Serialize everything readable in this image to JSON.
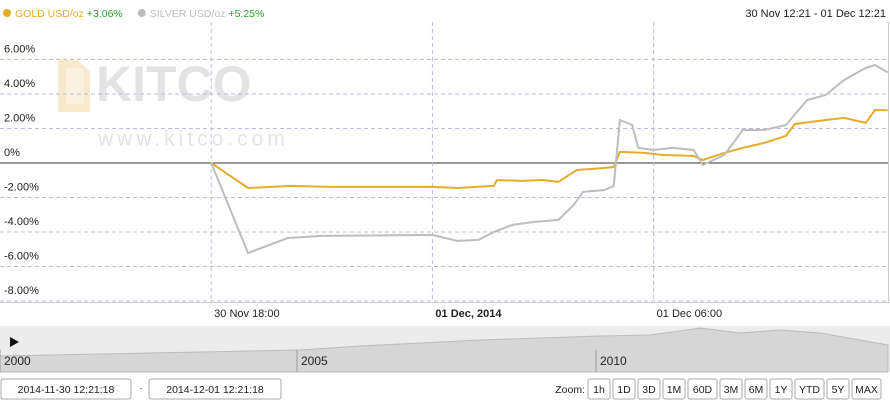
{
  "chart_data": {
    "type": "line",
    "date_range": "30 Nov 12:21 - 01 Dec 12:21",
    "watermark": {
      "brand": "KITCO",
      "url": "www.kitco.com"
    },
    "xlim": [
      "2014-11-30 12:21:18",
      "2014-12-01 12:21:18"
    ],
    "xticks": [
      {
        "value": "2014-11-30 18:00",
        "label": "30 Nov 18:00"
      },
      {
        "value": "2014-12-01 00:00",
        "label": "01 Dec, 2014"
      },
      {
        "value": "2014-12-01 06:00",
        "label": "01 Dec 06:00"
      }
    ],
    "ylim": [
      -8.06,
      8.17
    ],
    "yticks": [
      {
        "value": 6,
        "label": "6.00%"
      },
      {
        "value": 4,
        "label": "4.00%"
      },
      {
        "value": 2,
        "label": "2.00%"
      },
      {
        "value": 0,
        "label": "0%"
      },
      {
        "value": -2,
        "label": "-2.00%"
      },
      {
        "value": -4,
        "label": "-4.00%"
      },
      {
        "value": -6,
        "label": "-6.00%"
      },
      {
        "value": -8,
        "label": "-8.00%"
      }
    ],
    "grid": true,
    "series": [
      {
        "name": "GOLD USD/oz",
        "color": "#e3ad2b",
        "change": 3.06,
        "change_label": "+3.06%",
        "x": [
          "2014-11-30 18:00",
          "2014-11-30 19:00",
          "2014-11-30 20:10",
          "2014-11-30 21:15",
          "2014-12-01 00:00",
          "2014-12-01 00:40",
          "2014-12-01 01:40",
          "2014-12-01 01:45",
          "2014-12-01 02:25",
          "2014-12-01 03:00",
          "2014-12-01 03:25",
          "2014-12-01 03:55",
          "2014-12-01 04:40",
          "2014-12-01 04:55",
          "2014-12-01 05:05",
          "2014-12-01 05:45",
          "2014-12-01 06:15",
          "2014-12-01 07:05",
          "2014-12-01 07:20",
          "2014-12-01 07:55",
          "2014-12-01 08:25",
          "2014-12-01 09:00",
          "2014-12-01 09:35",
          "2014-12-01 09:50",
          "2014-12-01 10:40",
          "2014-12-01 11:10",
          "2014-12-01 11:45",
          "2014-12-01 12:00",
          "2014-12-01 12:21"
        ],
        "values": [
          0,
          -1.45,
          -1.33,
          -1.39,
          -1.39,
          -1.45,
          -1.33,
          -0.99,
          -1.04,
          -0.99,
          -1.1,
          -0.41,
          -0.29,
          -0.23,
          0.64,
          0.58,
          0.46,
          0.41,
          0.17,
          0.58,
          0.87,
          1.16,
          1.57,
          2.26,
          2.49,
          2.61,
          2.32,
          3.07,
          3.06
        ]
      },
      {
        "name": "SILVER USD/oz",
        "color": "#bdbdbd",
        "change": 5.25,
        "change_label": "+5.25%",
        "x": [
          "2014-11-30 18:00",
          "2014-11-30 19:00",
          "2014-11-30 20:05",
          "2014-11-30 21:00",
          "2014-12-01 00:00",
          "2014-12-01 00:40",
          "2014-12-01 01:15",
          "2014-12-01 01:40",
          "2014-12-01 02:10",
          "2014-12-01 02:45",
          "2014-12-01 03:25",
          "2014-12-01 03:50",
          "2014-12-01 04:05",
          "2014-12-01 04:40",
          "2014-12-01 04:55",
          "2014-12-01 05:05",
          "2014-12-01 05:25",
          "2014-12-01 05:35",
          "2014-12-01 06:00",
          "2014-12-01 06:30",
          "2014-12-01 07:05",
          "2014-12-01 07:20",
          "2014-12-01 07:55",
          "2014-12-01 08:25",
          "2014-12-01 09:00",
          "2014-12-01 09:35",
          "2014-12-01 10:10",
          "2014-12-01 10:40",
          "2014-12-01 11:10",
          "2014-12-01 11:45",
          "2014-12-01 12:00",
          "2014-12-01 12:21"
        ],
        "values": [
          0,
          -5.22,
          -4.35,
          -4.23,
          -4.17,
          -4.52,
          -4.46,
          -4.0,
          -3.59,
          -3.42,
          -3.3,
          -2.43,
          -1.68,
          -1.57,
          -1.33,
          2.49,
          2.2,
          0.87,
          0.75,
          0.87,
          0.75,
          -0.12,
          0.46,
          1.91,
          1.91,
          2.2,
          3.65,
          3.94,
          4.81,
          5.51,
          5.68,
          5.25
        ]
      }
    ],
    "navigator": {
      "labels": [
        "2000",
        "2005",
        "2010"
      ]
    },
    "controls": {
      "range_separator": "-",
      "zoom_label": "Zoom:",
      "zoom_buttons": [
        "1h",
        "1D",
        "3D",
        "1M",
        "60D",
        "3M",
        "6M",
        "1Y",
        "YTD",
        "5Y",
        "MAX"
      ]
    }
  }
}
